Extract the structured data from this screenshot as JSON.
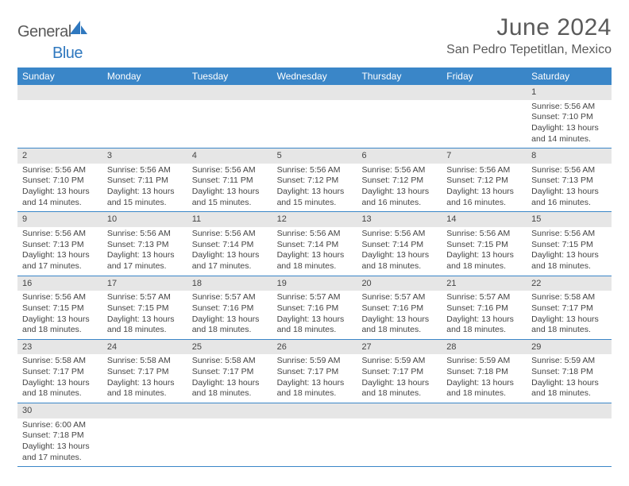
{
  "logo": {
    "general": "General",
    "blue": "Blue"
  },
  "title": "June 2024",
  "location": "San Pedro Tepetitlan, Mexico",
  "colors": {
    "header_bg": "#3a86c8",
    "header_fg": "#ffffff",
    "daynum_bg": "#e6e6e6",
    "rule": "#3a86c8",
    "text": "#444444",
    "title": "#5a5a5a"
  },
  "dow": [
    "Sunday",
    "Monday",
    "Tuesday",
    "Wednesday",
    "Thursday",
    "Friday",
    "Saturday"
  ],
  "weeks": [
    [
      null,
      null,
      null,
      null,
      null,
      null,
      {
        "n": "1",
        "sunrise": "Sunrise: 5:56 AM",
        "sunset": "Sunset: 7:10 PM",
        "daylight": "Daylight: 13 hours and 14 minutes."
      }
    ],
    [
      {
        "n": "2",
        "sunrise": "Sunrise: 5:56 AM",
        "sunset": "Sunset: 7:10 PM",
        "daylight": "Daylight: 13 hours and 14 minutes."
      },
      {
        "n": "3",
        "sunrise": "Sunrise: 5:56 AM",
        "sunset": "Sunset: 7:11 PM",
        "daylight": "Daylight: 13 hours and 15 minutes."
      },
      {
        "n": "4",
        "sunrise": "Sunrise: 5:56 AM",
        "sunset": "Sunset: 7:11 PM",
        "daylight": "Daylight: 13 hours and 15 minutes."
      },
      {
        "n": "5",
        "sunrise": "Sunrise: 5:56 AM",
        "sunset": "Sunset: 7:12 PM",
        "daylight": "Daylight: 13 hours and 15 minutes."
      },
      {
        "n": "6",
        "sunrise": "Sunrise: 5:56 AM",
        "sunset": "Sunset: 7:12 PM",
        "daylight": "Daylight: 13 hours and 16 minutes."
      },
      {
        "n": "7",
        "sunrise": "Sunrise: 5:56 AM",
        "sunset": "Sunset: 7:12 PM",
        "daylight": "Daylight: 13 hours and 16 minutes."
      },
      {
        "n": "8",
        "sunrise": "Sunrise: 5:56 AM",
        "sunset": "Sunset: 7:13 PM",
        "daylight": "Daylight: 13 hours and 16 minutes."
      }
    ],
    [
      {
        "n": "9",
        "sunrise": "Sunrise: 5:56 AM",
        "sunset": "Sunset: 7:13 PM",
        "daylight": "Daylight: 13 hours and 17 minutes."
      },
      {
        "n": "10",
        "sunrise": "Sunrise: 5:56 AM",
        "sunset": "Sunset: 7:13 PM",
        "daylight": "Daylight: 13 hours and 17 minutes."
      },
      {
        "n": "11",
        "sunrise": "Sunrise: 5:56 AM",
        "sunset": "Sunset: 7:14 PM",
        "daylight": "Daylight: 13 hours and 17 minutes."
      },
      {
        "n": "12",
        "sunrise": "Sunrise: 5:56 AM",
        "sunset": "Sunset: 7:14 PM",
        "daylight": "Daylight: 13 hours and 18 minutes."
      },
      {
        "n": "13",
        "sunrise": "Sunrise: 5:56 AM",
        "sunset": "Sunset: 7:14 PM",
        "daylight": "Daylight: 13 hours and 18 minutes."
      },
      {
        "n": "14",
        "sunrise": "Sunrise: 5:56 AM",
        "sunset": "Sunset: 7:15 PM",
        "daylight": "Daylight: 13 hours and 18 minutes."
      },
      {
        "n": "15",
        "sunrise": "Sunrise: 5:56 AM",
        "sunset": "Sunset: 7:15 PM",
        "daylight": "Daylight: 13 hours and 18 minutes."
      }
    ],
    [
      {
        "n": "16",
        "sunrise": "Sunrise: 5:56 AM",
        "sunset": "Sunset: 7:15 PM",
        "daylight": "Daylight: 13 hours and 18 minutes."
      },
      {
        "n": "17",
        "sunrise": "Sunrise: 5:57 AM",
        "sunset": "Sunset: 7:15 PM",
        "daylight": "Daylight: 13 hours and 18 minutes."
      },
      {
        "n": "18",
        "sunrise": "Sunrise: 5:57 AM",
        "sunset": "Sunset: 7:16 PM",
        "daylight": "Daylight: 13 hours and 18 minutes."
      },
      {
        "n": "19",
        "sunrise": "Sunrise: 5:57 AM",
        "sunset": "Sunset: 7:16 PM",
        "daylight": "Daylight: 13 hours and 18 minutes."
      },
      {
        "n": "20",
        "sunrise": "Sunrise: 5:57 AM",
        "sunset": "Sunset: 7:16 PM",
        "daylight": "Daylight: 13 hours and 18 minutes."
      },
      {
        "n": "21",
        "sunrise": "Sunrise: 5:57 AM",
        "sunset": "Sunset: 7:16 PM",
        "daylight": "Daylight: 13 hours and 18 minutes."
      },
      {
        "n": "22",
        "sunrise": "Sunrise: 5:58 AM",
        "sunset": "Sunset: 7:17 PM",
        "daylight": "Daylight: 13 hours and 18 minutes."
      }
    ],
    [
      {
        "n": "23",
        "sunrise": "Sunrise: 5:58 AM",
        "sunset": "Sunset: 7:17 PM",
        "daylight": "Daylight: 13 hours and 18 minutes."
      },
      {
        "n": "24",
        "sunrise": "Sunrise: 5:58 AM",
        "sunset": "Sunset: 7:17 PM",
        "daylight": "Daylight: 13 hours and 18 minutes."
      },
      {
        "n": "25",
        "sunrise": "Sunrise: 5:58 AM",
        "sunset": "Sunset: 7:17 PM",
        "daylight": "Daylight: 13 hours and 18 minutes."
      },
      {
        "n": "26",
        "sunrise": "Sunrise: 5:59 AM",
        "sunset": "Sunset: 7:17 PM",
        "daylight": "Daylight: 13 hours and 18 minutes."
      },
      {
        "n": "27",
        "sunrise": "Sunrise: 5:59 AM",
        "sunset": "Sunset: 7:17 PM",
        "daylight": "Daylight: 13 hours and 18 minutes."
      },
      {
        "n": "28",
        "sunrise": "Sunrise: 5:59 AM",
        "sunset": "Sunset: 7:18 PM",
        "daylight": "Daylight: 13 hours and 18 minutes."
      },
      {
        "n": "29",
        "sunrise": "Sunrise: 5:59 AM",
        "sunset": "Sunset: 7:18 PM",
        "daylight": "Daylight: 13 hours and 18 minutes."
      }
    ],
    [
      {
        "n": "30",
        "sunrise": "Sunrise: 6:00 AM",
        "sunset": "Sunset: 7:18 PM",
        "daylight": "Daylight: 13 hours and 17 minutes."
      },
      null,
      null,
      null,
      null,
      null,
      null
    ]
  ]
}
